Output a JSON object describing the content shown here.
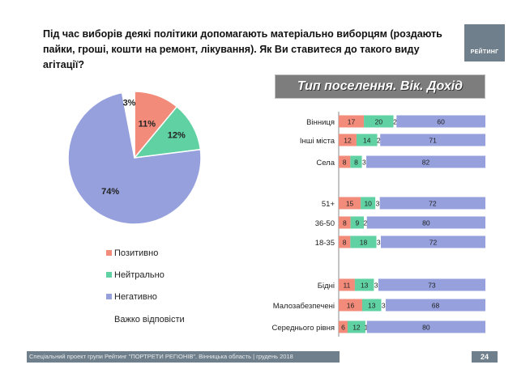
{
  "question": "Під час виборів деякі політики допомагають матеріально виборцям (роздають пайки, гроші, кошти на ремонт, лікування). Як Ви ставитеся до такого виду агітації?",
  "badge": "РЕЙТИНГ",
  "section_header": "Тип поселення. Вік. Дохід",
  "footer": "Спеціальний проект групи Рейтинг \"ПОРТРЕТИ РЕГІОНІВ\". Вінницька область | грудень 2018",
  "page_number": "24",
  "colors": {
    "positive": "#f28b7a",
    "neutral": "#5fd1a3",
    "negative": "#95a0dd",
    "dont_know": "#ffffff",
    "badge": "#6f7f8b",
    "header": "#7d7d7d"
  },
  "chart_data": [
    {
      "type": "pie",
      "labels": [
        "Позитивно",
        "Нейтрально",
        "Негативно",
        "Важко відповісти"
      ],
      "values": [
        11,
        12,
        74,
        3
      ],
      "data_labels": [
        "11%",
        "12%",
        "74%",
        "3%"
      ],
      "legend_position": "bottom"
    },
    {
      "type": "bar",
      "stacked": true,
      "orientation": "horizontal",
      "categories": [
        "Вінниця",
        "Інші міста",
        "Села",
        "51+",
        "36-50",
        "18-35",
        "Бідні",
        "Малозабезпечені",
        "Середнього рівня"
      ],
      "series": [
        {
          "name": "Позитивно",
          "values": [
            17,
            12,
            8,
            15,
            8,
            8,
            11,
            16,
            6
          ]
        },
        {
          "name": "Нейтрально",
          "values": [
            20,
            14,
            8,
            10,
            9,
            18,
            13,
            13,
            12
          ]
        },
        {
          "name": "Важко відповісти",
          "values": [
            2,
            2,
            3,
            3,
            2,
            3,
            3,
            3,
            1
          ]
        },
        {
          "name": "Негативно",
          "values": [
            60,
            71,
            82,
            72,
            80,
            72,
            73,
            68,
            80
          ]
        }
      ],
      "xlim": [
        0,
        100
      ]
    }
  ]
}
